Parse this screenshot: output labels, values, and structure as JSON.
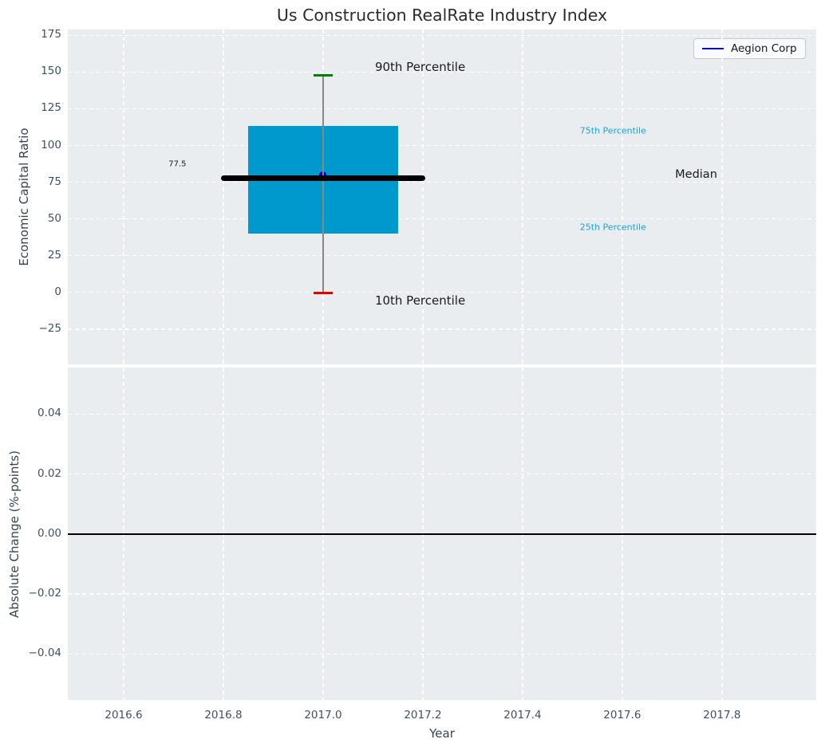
{
  "title": "Us Construction RealRate Industry Index",
  "legend": {
    "label": "Aegion Corp",
    "line_color": "#0000cd",
    "position": "upper right"
  },
  "colors": {
    "plot_background": "#eaedef",
    "gridline": "#ffffff",
    "tick_label": "#3d5166",
    "axis_label": "#36454f",
    "box_fill": "#0099cd",
    "whisker_line": "#888888",
    "cap_90th": "#008000",
    "cap_10th": "#e50000",
    "median_line": "#000000",
    "company_point": "#0000cd",
    "percentile_text_cyan": "#1aa3d6",
    "annotation_text": "#1a1a1a",
    "zero_line": "#000000"
  },
  "chart_data": [
    {
      "type": "box",
      "title": "Us Construction RealRate Industry Index",
      "ylabel": "Economic Capital Ratio",
      "xlabel": "",
      "grid": true,
      "xlim": [
        2016.488,
        2017.989
      ],
      "ylim": [
        -49,
        179
      ],
      "yticks": {
        "values": [
          175,
          150,
          125,
          100,
          75,
          50,
          25,
          0,
          -25
        ],
        "labels": [
          "175",
          "150",
          "125",
          "100",
          "75",
          "50",
          "25",
          "0",
          "−25"
        ]
      },
      "xticks": {
        "values": [
          2016.6,
          2016.8,
          2017.0,
          2017.2,
          2017.4,
          2017.6,
          2017.8
        ],
        "labels": [
          "2016.6",
          "2016.8",
          "2017.0",
          "2017.2",
          "2017.4",
          "2017.6",
          "2017.8"
        ],
        "labels_visible": false
      },
      "box": {
        "x": 2017.0,
        "stats": {
          "p10": -0.5,
          "p25": 40,
          "median": 77.5,
          "p75": 113.5,
          "p90": 148
        },
        "box_halfwidth": 0.15,
        "median_line_halfwidth": 0.205,
        "cap_halfwidth": 0.019
      },
      "company_point": {
        "name": "Aegion Corp",
        "x": 2017.0,
        "y": 80
      },
      "annotations": [
        {
          "text": "90th Percentile",
          "x": 2017.104,
          "y": 153.4,
          "size": 15,
          "color": "#1a1a1a"
        },
        {
          "text": "10th Percentile",
          "x": 2017.104,
          "y": -5.6,
          "size": 15,
          "color": "#1a1a1a"
        },
        {
          "text": "75th Percentile",
          "x": 2017.515,
          "y": 110,
          "size": 11,
          "color": "#1aa3d6"
        },
        {
          "text": "25th Percentile",
          "x": 2017.515,
          "y": 44.3,
          "size": 11,
          "color": "#1aa3d6"
        },
        {
          "text": "Median",
          "x": 2017.706,
          "y": 80,
          "size": 14.5,
          "color": "#1a1a1a"
        },
        {
          "text": "77.5",
          "x": 2016.69,
          "y": 87.4,
          "size": 10,
          "color": "#1a1a1a"
        }
      ]
    },
    {
      "type": "line",
      "ylabel": "Absolute Change (%-points)",
      "xlabel": "Year",
      "grid": true,
      "xlim": [
        2016.488,
        2017.989
      ],
      "ylim": [
        -0.0553,
        0.0555
      ],
      "yticks": {
        "values": [
          0.04,
          0.02,
          0.0,
          -0.02,
          -0.04
        ],
        "labels": [
          "0.04",
          "0.02",
          "0.00",
          "−0.02",
          "−0.04"
        ]
      },
      "xticks": {
        "values": [
          2016.6,
          2016.8,
          2017.0,
          2017.2,
          2017.4,
          2017.6,
          2017.8
        ],
        "labels": [
          "2016.6",
          "2016.8",
          "2017.0",
          "2017.2",
          "2017.4",
          "2017.6",
          "2017.8"
        ],
        "labels_visible": true
      },
      "zero_line_y": 0.0
    }
  ]
}
